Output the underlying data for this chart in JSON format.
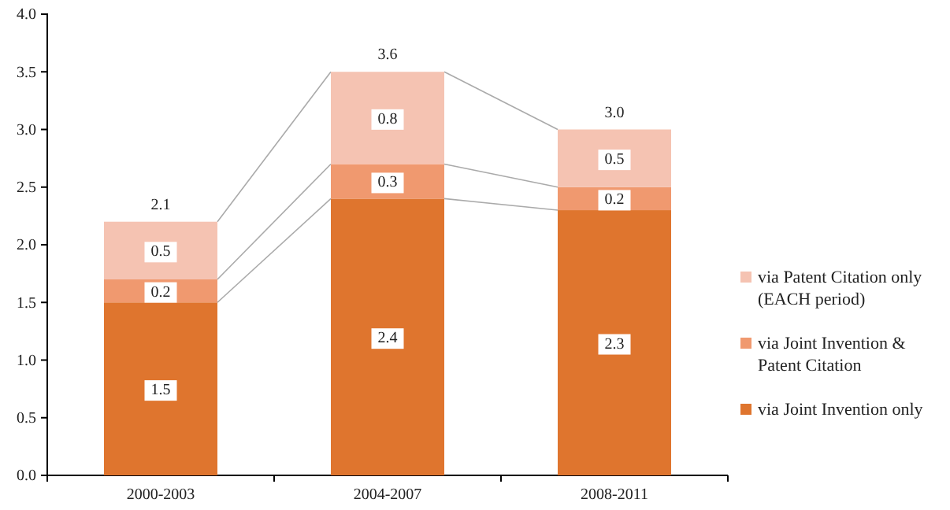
{
  "chart_data": {
    "type": "bar",
    "stacked": true,
    "categories": [
      "2000-2003",
      "2004-2007",
      "2008-2011"
    ],
    "series": [
      {
        "name": "via Joint Invention only",
        "color": "#df752e",
        "values": [
          1.5,
          2.4,
          2.3
        ]
      },
      {
        "name": "via Joint Invention & Patent Citation",
        "color": "#f0996f",
        "values": [
          0.2,
          0.3,
          0.2
        ]
      },
      {
        "name": "via Patent Citation only (EACH period)",
        "color": "#f5c3b2",
        "values": [
          0.5,
          0.8,
          0.5
        ]
      }
    ],
    "ylim": [
      0,
      4
    ],
    "yticks": [
      "0.0",
      "0.5",
      "1.0",
      "1.5",
      "2.0",
      "2.5",
      "3.0",
      "3.5",
      "4.0"
    ],
    "data_labels": true,
    "totals": [
      "2.1",
      "3.6",
      "3.0"
    ],
    "legend": "right",
    "grid": false
  }
}
